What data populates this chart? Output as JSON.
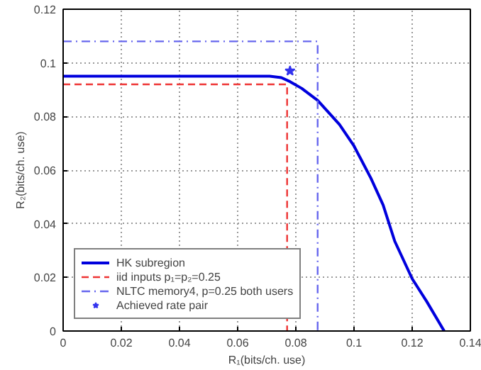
{
  "chart_data": {
    "type": "line",
    "xlabel": "R₁(bits/ch. use)",
    "ylabel": "R₂(bits/ch. use)",
    "xlim": [
      0,
      0.14
    ],
    "ylim": [
      0,
      0.12
    ],
    "xticks": [
      0,
      0.02,
      0.04,
      0.06,
      0.08,
      0.1,
      0.12,
      0.14
    ],
    "yticks": [
      0,
      0.02,
      0.04,
      0.06,
      0.08,
      0.1,
      0.12
    ],
    "grid": true,
    "legend": "bottom left",
    "series": [
      {
        "name": "HK subregion",
        "color": "#0000dd",
        "line_style": "solid",
        "x": [
          0,
          0.071,
          0.075,
          0.078,
          0.082,
          0.0875,
          0.095,
          0.1,
          0.1058,
          0.11,
          0.114,
          0.12,
          0.125,
          0.131
        ],
        "values": [
          0.095,
          0.095,
          0.0945,
          0.093,
          0.0905,
          0.086,
          0.077,
          0.069,
          0.057,
          0.047,
          0.0335,
          0.0195,
          0.011,
          0
        ]
      },
      {
        "name": "iid inputs p₁=p₂=0.25",
        "color": "#ee3333",
        "line_style": "dashed",
        "x": [
          0,
          0.077,
          0.077
        ],
        "values": [
          0.092,
          0.092,
          0
        ]
      },
      {
        "name": "NLTC memory4, p=0.25 both users",
        "color": "#6666ee",
        "line_style": "dashdot",
        "x": [
          0,
          0.0875,
          0.0875
        ],
        "values": [
          0.108,
          0.108,
          0
        ]
      },
      {
        "name": "Achieved rate pair",
        "color": "#3333ee",
        "type": "scatter",
        "marker": "star",
        "x": [
          0.078
        ],
        "values": [
          0.097
        ]
      }
    ]
  }
}
